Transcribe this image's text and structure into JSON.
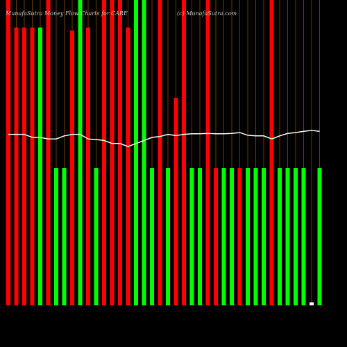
{
  "chart_data": {
    "type": "bar",
    "title": "MunafaSutra Money Flow Charts for CARE",
    "subtitle": "(c) MunafaSutra.com",
    "categories": [
      null,
      null,
      null,
      null,
      null,
      null,
      null,
      null,
      null,
      null,
      null,
      null,
      null,
      null,
      null,
      null,
      null,
      null,
      null,
      null,
      null,
      null,
      null,
      null,
      null,
      null,
      null,
      null,
      null,
      null,
      null,
      null,
      null,
      null,
      null,
      null,
      null,
      null,
      null,
      null
    ],
    "ylim": [
      0,
      100
    ],
    "series": [
      {
        "type": "bar",
        "colors": [
          "#ff0000",
          "#ff0000",
          "#ff0000",
          "#ff0000",
          "#00ff00",
          "#ff0000",
          "#00ff00",
          "#00ff00",
          "#ff0000",
          "#00ff00",
          "#ff0000",
          "#00ff00",
          "#ff0000",
          "#ff0000",
          "#ff0000",
          "#ff0000",
          "#00ff00",
          "#00ff00",
          "#00ff00",
          "#ff0000",
          "#00ff00",
          "#ff0000",
          "#ff0000",
          "#00ff00",
          "#00ff00",
          "#ff0000",
          "#ff0000",
          "#00ff00",
          "#00ff00",
          "#ff0000",
          "#00ff00",
          "#00ff00",
          "#00ff00",
          "#ff0000",
          "#00ff00",
          "#00ff00",
          "#00ff00",
          "#00ff00",
          "#ffffff",
          "#00ff00"
        ],
        "values": [
          100,
          91,
          91,
          91,
          91,
          100,
          45,
          45,
          90,
          100,
          91,
          45,
          100,
          100,
          100,
          91,
          100,
          100,
          45,
          100,
          45,
          68,
          100,
          45,
          45,
          100,
          45,
          45,
          45,
          45,
          45,
          45,
          45,
          100,
          45,
          45,
          45,
          45,
          1,
          45
        ]
      },
      {
        "type": "line",
        "color": "#ffffff",
        "values": [
          56,
          56,
          56,
          55,
          55,
          54.5,
          54.5,
          55.5,
          56,
          56,
          54.5,
          54.3,
          54,
          53,
          53,
          52,
          53,
          54,
          55,
          55.3,
          56,
          55.6,
          56,
          56.2,
          56.2,
          56.3,
          56.2,
          56.2,
          56.3,
          56.6,
          55.7,
          55.5,
          55.5,
          54.5,
          55.5,
          56.3,
          56.6,
          57,
          57.3,
          57
        ]
      }
    ]
  }
}
